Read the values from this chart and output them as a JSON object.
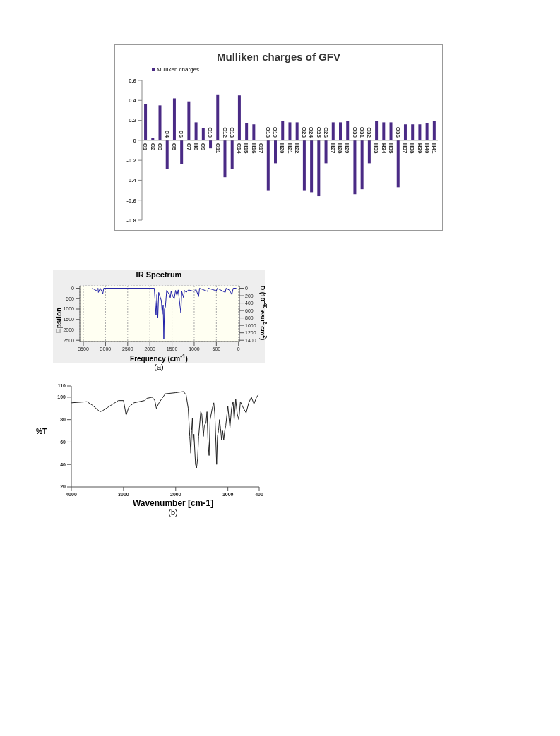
{
  "chart_data": [
    {
      "type": "bar",
      "title": "Mulliken charges of GFV",
      "legend": "top left",
      "categories": [
        "C1",
        "C2",
        "C3",
        "C4",
        "C5",
        "C6",
        "C7",
        "H8",
        "C9",
        "C10",
        "C11",
        "C12",
        "C13",
        "C14",
        "H15",
        "H16",
        "C17",
        "O18",
        "O19",
        "H20",
        "H21",
        "H22",
        "O23",
        "O24",
        "O25",
        "C26",
        "H27",
        "H28",
        "H29",
        "O30",
        "O31",
        "C32",
        "H33",
        "H34",
        "H35",
        "O36",
        "H37",
        "H38",
        "H39",
        "H40",
        "H41"
      ],
      "series": [
        {
          "name": "Mulliken charges",
          "color": "#4a2a85",
          "values": [
            0.36,
            0.025,
            0.35,
            -0.29,
            0.42,
            -0.24,
            0.39,
            0.18,
            0.12,
            -0.08,
            0.46,
            -0.37,
            -0.29,
            0.45,
            0.17,
            0.16,
            0,
            -0.5,
            -0.23,
            0.19,
            0.18,
            0.18,
            -0.5,
            -0.52,
            -0.56,
            -0.23,
            0.18,
            0.18,
            0.19,
            -0.54,
            -0.49,
            -0.23,
            0.19,
            0.18,
            0.18,
            -0.47,
            0.16,
            0.16,
            0.16,
            0.17,
            0.19
          ]
        }
      ],
      "ylim": [
        -0.8,
        0.6
      ],
      "yticks": [
        -0.8,
        -0.6,
        -0.4,
        -0.2,
        0,
        0.2,
        0.4,
        0.6
      ]
    },
    {
      "type": "line",
      "title": "IR Spectrum",
      "xlabel": "Frequency (cm$^{-1}$)",
      "ylabel": "Epsilon",
      "y2label": "D (10$^{-40}$ esu$^{2}$ cm$^{2}$)",
      "annotations": [
        "(a)"
      ],
      "grid": true,
      "series": [
        {
          "color": "#2020a8",
          "x": [
            3300,
            3200,
            3170,
            3160,
            3120,
            3060,
            3040,
            1900,
            1860,
            1840,
            1820,
            1800,
            1740,
            1720,
            1700,
            1685,
            1670,
            1650,
            1620,
            1560,
            1540,
            1520,
            1480,
            1450,
            1420,
            1390,
            1360,
            1300,
            1280,
            1240,
            1220,
            1180,
            1130,
            1000,
            960,
            900,
            880,
            700,
            680,
            500,
            480,
            300,
            280,
            200,
            150,
            120,
            50
          ],
          "values": [
            0,
            120,
            0,
            200,
            0,
            250,
            0,
            0,
            1300,
            300,
            1400,
            200,
            600,
            1250,
            800,
            2450,
            1000,
            900,
            100,
            300,
            450,
            150,
            400,
            500,
            100,
            350,
            80,
            1200,
            150,
            450,
            100,
            200,
            80,
            150,
            50,
            400,
            0,
            150,
            0,
            120,
            0,
            200,
            0,
            100,
            300,
            0,
            0
          ]
        }
      ],
      "xlim": [
        3580,
        -20
      ],
      "xticks": [
        3500,
        3000,
        2500,
        2000,
        1500,
        1000,
        500,
        0
      ],
      "ylim": [
        2560,
        -120
      ],
      "yticks": [
        0,
        500,
        1000,
        1500,
        2000,
        2500
      ],
      "y2lim": [
        1434,
        -67
      ],
      "y2ticks": [
        0,
        200,
        400,
        600,
        800,
        1000,
        1200,
        1400
      ]
    },
    {
      "type": "line",
      "xlabel": "Wavenumber [cm-1]",
      "ylabel": "%T",
      "annotations": [
        "(b)"
      ],
      "series": [
        {
          "color": "#222222",
          "x": [
            4000,
            3700,
            3600,
            3450,
            3400,
            3300,
            3100,
            3000,
            2950,
            2900,
            2800,
            2600,
            2550,
            2450,
            2400,
            2370,
            2320,
            2200,
            2000,
            1850,
            1800,
            1760,
            1730,
            1710,
            1695,
            1680,
            1665,
            1650,
            1620,
            1600,
            1580,
            1560,
            1520,
            1500,
            1480,
            1470,
            1450,
            1420,
            1400,
            1380,
            1360,
            1340,
            1300,
            1270,
            1250,
            1230,
            1215,
            1200,
            1180,
            1160,
            1140,
            1120,
            1100,
            1080,
            1060,
            1040,
            1000,
            980,
            960,
            930,
            900,
            880,
            850,
            820,
            790,
            760,
            700,
            650,
            600,
            550,
            500,
            450,
            420
          ],
          "values": [
            95,
            96,
            93,
            87,
            88,
            91,
            97,
            97,
            84,
            91,
            95,
            97,
            99,
            100,
            97,
            90,
            95,
            103,
            104,
            105,
            102,
            90,
            65,
            50,
            70,
            81,
            60,
            67,
            40,
            37,
            45,
            65,
            87,
            85,
            72,
            65,
            75,
            77,
            87,
            60,
            48,
            80,
            90,
            95,
            85,
            60,
            40,
            65,
            70,
            80,
            72,
            62,
            70,
            62,
            70,
            75,
            92,
            82,
            73,
            90,
            96,
            80,
            98,
            85,
            80,
            96,
            90,
            86,
            95,
            100,
            94,
            100,
            102
          ]
        }
      ],
      "xlim": [
        4000,
        400
      ],
      "xticks": [
        4000,
        3000,
        2000,
        1000,
        400
      ],
      "ylim": [
        20,
        110
      ],
      "yticks": [
        20,
        40,
        60,
        80,
        100,
        110
      ]
    }
  ]
}
